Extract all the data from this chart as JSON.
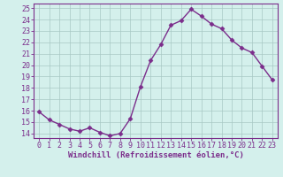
{
  "x": [
    0,
    1,
    2,
    3,
    4,
    5,
    6,
    7,
    8,
    9,
    10,
    11,
    12,
    13,
    14,
    15,
    16,
    17,
    18,
    19,
    20,
    21,
    22,
    23
  ],
  "y": [
    15.9,
    15.2,
    14.8,
    14.4,
    14.2,
    14.5,
    14.1,
    13.8,
    14.0,
    15.3,
    18.1,
    20.4,
    21.8,
    23.5,
    23.9,
    24.9,
    24.3,
    23.6,
    23.2,
    22.2,
    21.5,
    21.1,
    19.9,
    18.7
  ],
  "line_color": "#7b2d8b",
  "marker": "D",
  "markersize": 2.5,
  "linewidth": 1.0,
  "bg_color": "#d4f0ec",
  "grid_color": "#a8c8c4",
  "xlabel": "Windchill (Refroidissement éolien,°C)",
  "xlabel_fontsize": 6.5,
  "ylabel_ticks": [
    14,
    15,
    16,
    17,
    18,
    19,
    20,
    21,
    22,
    23,
    24,
    25
  ],
  "xlim": [
    -0.5,
    23.5
  ],
  "ylim": [
    13.6,
    25.4
  ],
  "xticks": [
    0,
    1,
    2,
    3,
    4,
    5,
    6,
    7,
    8,
    9,
    10,
    11,
    12,
    13,
    14,
    15,
    16,
    17,
    18,
    19,
    20,
    21,
    22,
    23
  ],
  "tick_fontsize": 6.0
}
